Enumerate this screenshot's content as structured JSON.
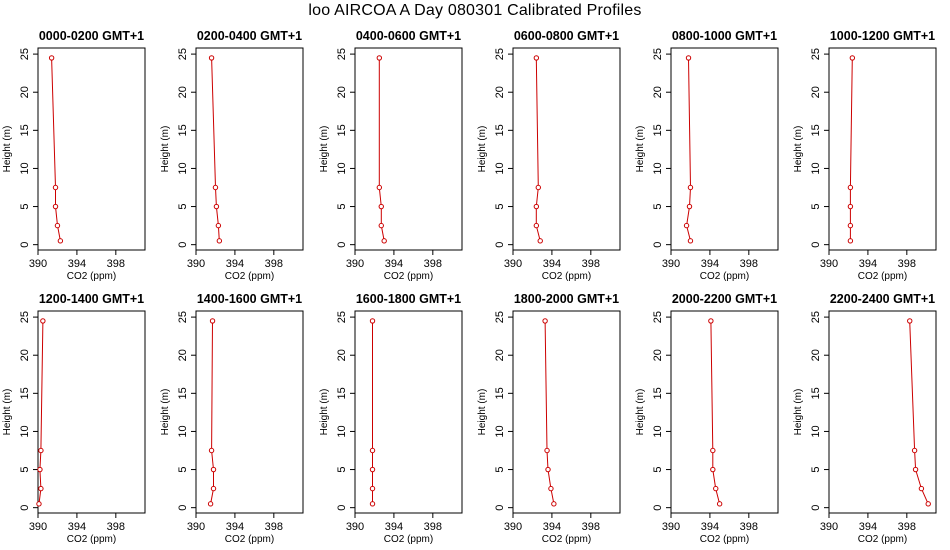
{
  "page_title": "loo AIRCOA A  Day 080301  Calibrated Profiles",
  "series_color": "#cc0000",
  "chart_data": [
    {
      "type": "line",
      "title": "0000-0200 GMT+1",
      "xlabel": "CO2 (ppm)",
      "ylabel": "Height (m)",
      "xlim": [
        390,
        401
      ],
      "ylim": [
        -0.7,
        25.8
      ],
      "xticks": [
        390,
        394,
        398
      ],
      "yticks": [
        0,
        5,
        10,
        15,
        20,
        25
      ],
      "grid": false,
      "series": [
        {
          "points": [
            {
              "x": 392.3,
              "y": 0.5
            },
            {
              "x": 392.0,
              "y": 2.5
            },
            {
              "x": 391.8,
              "y": 5.0
            },
            {
              "x": 391.8,
              "y": 7.5
            },
            {
              "x": 391.4,
              "y": 24.5
            }
          ]
        }
      ]
    },
    {
      "type": "line",
      "title": "0200-0400 GMT+1",
      "xlabel": "CO2 (ppm)",
      "ylabel": "Height (m)",
      "xlim": [
        390,
        401
      ],
      "ylim": [
        -0.7,
        25.8
      ],
      "xticks": [
        390,
        394,
        398
      ],
      "yticks": [
        0,
        5,
        10,
        15,
        20,
        25
      ],
      "grid": false,
      "series": [
        {
          "points": [
            {
              "x": 392.4,
              "y": 0.5
            },
            {
              "x": 392.3,
              "y": 2.5
            },
            {
              "x": 392.1,
              "y": 5.0
            },
            {
              "x": 392.0,
              "y": 7.5
            },
            {
              "x": 391.6,
              "y": 24.5
            }
          ]
        }
      ]
    },
    {
      "type": "line",
      "title": "0400-0600 GMT+1",
      "xlabel": "CO2 (ppm)",
      "ylabel": "Height (m)",
      "xlim": [
        390,
        401
      ],
      "ylim": [
        -0.7,
        25.8
      ],
      "xticks": [
        390,
        394,
        398
      ],
      "yticks": [
        0,
        5,
        10,
        15,
        20,
        25
      ],
      "grid": false,
      "series": [
        {
          "points": [
            {
              "x": 393.0,
              "y": 0.5
            },
            {
              "x": 392.7,
              "y": 2.5
            },
            {
              "x": 392.7,
              "y": 5.0
            },
            {
              "x": 392.5,
              "y": 7.5
            },
            {
              "x": 392.5,
              "y": 24.5
            }
          ]
        }
      ]
    },
    {
      "type": "line",
      "title": "0600-0800 GMT+1",
      "xlabel": "CO2 (ppm)",
      "ylabel": "Height (m)",
      "xlim": [
        390,
        401
      ],
      "ylim": [
        -0.7,
        25.8
      ],
      "xticks": [
        390,
        394,
        398
      ],
      "yticks": [
        0,
        5,
        10,
        15,
        20,
        25
      ],
      "grid": false,
      "series": [
        {
          "points": [
            {
              "x": 392.8,
              "y": 0.5
            },
            {
              "x": 392.4,
              "y": 2.5
            },
            {
              "x": 392.4,
              "y": 5.0
            },
            {
              "x": 392.6,
              "y": 7.5
            },
            {
              "x": 392.4,
              "y": 24.5
            }
          ]
        }
      ]
    },
    {
      "type": "line",
      "title": "0800-1000 GMT+1",
      "xlabel": "CO2 (ppm)",
      "ylabel": "Height (m)",
      "xlim": [
        390,
        401
      ],
      "ylim": [
        -0.7,
        25.8
      ],
      "xticks": [
        390,
        394,
        398
      ],
      "yticks": [
        0,
        5,
        10,
        15,
        20,
        25
      ],
      "grid": false,
      "series": [
        {
          "points": [
            {
              "x": 392.0,
              "y": 0.5
            },
            {
              "x": 391.6,
              "y": 2.5
            },
            {
              "x": 391.9,
              "y": 5.0
            },
            {
              "x": 392.0,
              "y": 7.5
            },
            {
              "x": 391.8,
              "y": 24.5
            }
          ]
        }
      ]
    },
    {
      "type": "line",
      "title": "1000-1200 GMT+1",
      "xlabel": "CO2 (ppm)",
      "ylabel": "Height (m)",
      "xlim": [
        390,
        401
      ],
      "ylim": [
        -0.7,
        25.8
      ],
      "xticks": [
        390,
        394,
        398
      ],
      "yticks": [
        0,
        5,
        10,
        15,
        20,
        25
      ],
      "grid": false,
      "series": [
        {
          "points": [
            {
              "x": 392.2,
              "y": 0.5
            },
            {
              "x": 392.2,
              "y": 2.5
            },
            {
              "x": 392.2,
              "y": 5.0
            },
            {
              "x": 392.2,
              "y": 7.5
            },
            {
              "x": 392.4,
              "y": 24.5
            }
          ]
        }
      ]
    },
    {
      "type": "line",
      "title": "1200-1400 GMT+1",
      "xlabel": "CO2 (ppm)",
      "ylabel": "Height (m)",
      "xlim": [
        390,
        401
      ],
      "ylim": [
        -0.7,
        25.8
      ],
      "xticks": [
        390,
        394,
        398
      ],
      "yticks": [
        0,
        5,
        10,
        15,
        20,
        25
      ],
      "grid": false,
      "series": [
        {
          "points": [
            {
              "x": 390.1,
              "y": 0.5
            },
            {
              "x": 390.3,
              "y": 2.5
            },
            {
              "x": 390.2,
              "y": 5.0
            },
            {
              "x": 390.3,
              "y": 7.5
            },
            {
              "x": 390.5,
              "y": 24.5
            }
          ]
        }
      ]
    },
    {
      "type": "line",
      "title": "1400-1600 GMT+1",
      "xlabel": "CO2 (ppm)",
      "ylabel": "Height (m)",
      "xlim": [
        390,
        401
      ],
      "ylim": [
        -0.7,
        25.8
      ],
      "xticks": [
        390,
        394,
        398
      ],
      "yticks": [
        0,
        5,
        10,
        15,
        20,
        25
      ],
      "grid": false,
      "series": [
        {
          "points": [
            {
              "x": 391.5,
              "y": 0.5
            },
            {
              "x": 391.8,
              "y": 2.5
            },
            {
              "x": 391.8,
              "y": 5.0
            },
            {
              "x": 391.6,
              "y": 7.5
            },
            {
              "x": 391.7,
              "y": 24.5
            }
          ]
        }
      ]
    },
    {
      "type": "line",
      "title": "1600-1800 GMT+1",
      "xlabel": "CO2 (ppm)",
      "ylabel": "Height (m)",
      "xlim": [
        390,
        401
      ],
      "ylim": [
        -0.7,
        25.8
      ],
      "xticks": [
        390,
        394,
        398
      ],
      "yticks": [
        0,
        5,
        10,
        15,
        20,
        25
      ],
      "grid": false,
      "series": [
        {
          "points": [
            {
              "x": 391.8,
              "y": 0.5
            },
            {
              "x": 391.8,
              "y": 2.5
            },
            {
              "x": 391.8,
              "y": 5.0
            },
            {
              "x": 391.8,
              "y": 7.5
            },
            {
              "x": 391.8,
              "y": 24.5
            }
          ]
        }
      ]
    },
    {
      "type": "line",
      "title": "1800-2000 GMT+1",
      "xlabel": "CO2 (ppm)",
      "ylabel": "Height (m)",
      "xlim": [
        390,
        401
      ],
      "ylim": [
        -0.7,
        25.8
      ],
      "xticks": [
        390,
        394,
        398
      ],
      "yticks": [
        0,
        5,
        10,
        15,
        20,
        25
      ],
      "grid": false,
      "series": [
        {
          "points": [
            {
              "x": 394.2,
              "y": 0.5
            },
            {
              "x": 393.9,
              "y": 2.5
            },
            {
              "x": 393.6,
              "y": 5.0
            },
            {
              "x": 393.5,
              "y": 7.5
            },
            {
              "x": 393.3,
              "y": 24.5
            }
          ]
        }
      ]
    },
    {
      "type": "line",
      "title": "2000-2200 GMT+1",
      "xlabel": "CO2 (ppm)",
      "ylabel": "Height (m)",
      "xlim": [
        390,
        401
      ],
      "ylim": [
        -0.7,
        25.8
      ],
      "xticks": [
        390,
        394,
        398
      ],
      "yticks": [
        0,
        5,
        10,
        15,
        20,
        25
      ],
      "grid": false,
      "series": [
        {
          "points": [
            {
              "x": 395.0,
              "y": 0.5
            },
            {
              "x": 394.6,
              "y": 2.5
            },
            {
              "x": 394.3,
              "y": 5.0
            },
            {
              "x": 394.3,
              "y": 7.5
            },
            {
              "x": 394.1,
              "y": 24.5
            }
          ]
        }
      ]
    },
    {
      "type": "line",
      "title": "2200-2400 GMT+1",
      "xlabel": "CO2 (ppm)",
      "ylabel": "Height (m)",
      "xlim": [
        390,
        401
      ],
      "ylim": [
        -0.7,
        25.8
      ],
      "xticks": [
        390,
        394,
        398
      ],
      "yticks": [
        0,
        5,
        10,
        15,
        20,
        25
      ],
      "grid": false,
      "series": [
        {
          "points": [
            {
              "x": 400.2,
              "y": 0.5
            },
            {
              "x": 399.5,
              "y": 2.5
            },
            {
              "x": 398.9,
              "y": 5.0
            },
            {
              "x": 398.8,
              "y": 7.5
            },
            {
              "x": 398.3,
              "y": 24.5
            }
          ]
        }
      ]
    }
  ]
}
